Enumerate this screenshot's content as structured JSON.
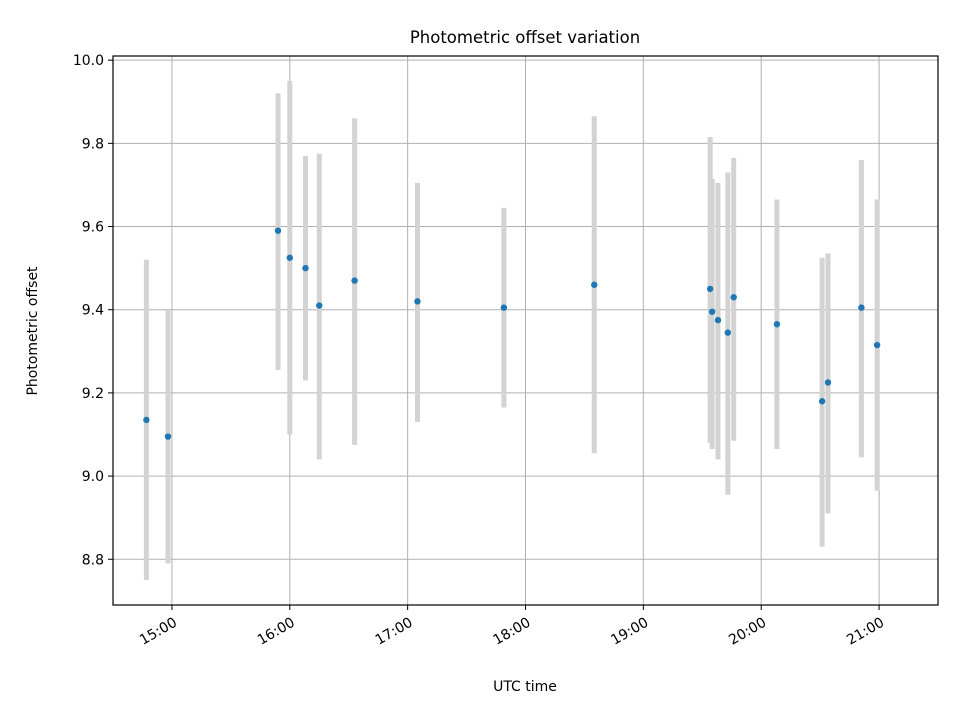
{
  "chart_data": {
    "type": "scatter",
    "title": "Photometric offset variation",
    "xlabel": "UTC time",
    "ylabel": "Photometric offset",
    "xlim": [
      "14:30",
      "21:30"
    ],
    "ylim": [
      8.69,
      10.01
    ],
    "xticks": [
      "15:00",
      "16:00",
      "17:00",
      "18:00",
      "19:00",
      "20:00",
      "21:00"
    ],
    "yticks": [
      "8.8",
      "9.0",
      "9.2",
      "9.4",
      "9.6",
      "9.8",
      "10.0"
    ],
    "grid": true,
    "colors": {
      "point": "#1f77b4",
      "errorbar": "#d3d3d3",
      "grid": "#b0b0b0"
    },
    "points": [
      {
        "x": "14:47",
        "y": 9.135,
        "y_low": 8.75,
        "y_high": 9.52
      },
      {
        "x": "14:58",
        "y": 9.095,
        "y_low": 8.79,
        "y_high": 9.4
      },
      {
        "x": "15:54",
        "y": 9.59,
        "y_low": 9.255,
        "y_high": 9.92
      },
      {
        "x": "16:00",
        "y": 9.525,
        "y_low": 9.1,
        "y_high": 9.95
      },
      {
        "x": "16:08",
        "y": 9.5,
        "y_low": 9.23,
        "y_high": 9.77
      },
      {
        "x": "16:15",
        "y": 9.41,
        "y_low": 9.04,
        "y_high": 9.775
      },
      {
        "x": "16:33",
        "y": 9.47,
        "y_low": 9.075,
        "y_high": 9.86
      },
      {
        "x": "17:05",
        "y": 9.42,
        "y_low": 9.13,
        "y_high": 9.705
      },
      {
        "x": "17:49",
        "y": 9.405,
        "y_low": 9.165,
        "y_high": 9.645
      },
      {
        "x": "18:35",
        "y": 9.46,
        "y_low": 9.055,
        "y_high": 9.865
      },
      {
        "x": "19:34",
        "y": 9.45,
        "y_low": 9.08,
        "y_high": 9.815
      },
      {
        "x": "19:35",
        "y": 9.395,
        "y_low": 9.065,
        "y_high": 9.715
      },
      {
        "x": "19:38",
        "y": 9.375,
        "y_low": 9.04,
        "y_high": 9.705
      },
      {
        "x": "19:43",
        "y": 9.345,
        "y_low": 8.955,
        "y_high": 9.73
      },
      {
        "x": "19:46",
        "y": 9.43,
        "y_low": 9.085,
        "y_high": 9.765
      },
      {
        "x": "20:08",
        "y": 9.365,
        "y_low": 9.065,
        "y_high": 9.665
      },
      {
        "x": "20:31",
        "y": 9.18,
        "y_low": 8.83,
        "y_high": 9.525
      },
      {
        "x": "20:34",
        "y": 9.225,
        "y_low": 8.91,
        "y_high": 9.535
      },
      {
        "x": "20:51",
        "y": 9.405,
        "y_low": 9.045,
        "y_high": 9.76
      },
      {
        "x": "20:59",
        "y": 9.315,
        "y_low": 8.965,
        "y_high": 9.665
      }
    ]
  }
}
